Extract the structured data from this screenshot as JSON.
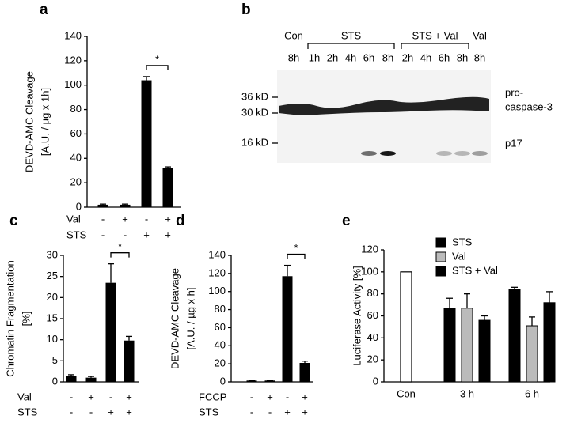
{
  "chart_data": [
    {
      "type": "bar",
      "panel": "a",
      "ylabel": [
        "DEVD-AMC Cleavage",
        "[A.U. / µg x 1h]"
      ],
      "values": [
        2,
        2,
        104,
        32
      ],
      "errors": [
        0.5,
        0.5,
        3,
        1
      ],
      "color": "#000000",
      "ylim": [
        0,
        140
      ],
      "yticks": [
        0,
        20,
        40,
        60,
        80,
        100,
        120,
        140
      ],
      "conditions": [
        {
          "name": "Val",
          "signs": [
            "-",
            "+",
            "-",
            "+"
          ]
        },
        {
          "name": "STS",
          "signs": [
            "-",
            "-",
            "+",
            "+"
          ]
        }
      ],
      "annotation": "*"
    },
    {
      "type": "bar",
      "panel": "c",
      "ylabel": [
        "Chromatin Fragmentation",
        "[%]"
      ],
      "values": [
        1.5,
        1.0,
        23.5,
        9.8
      ],
      "errors": [
        0.2,
        0.3,
        4.5,
        1.0
      ],
      "color": "#000000",
      "ylim": [
        0,
        30
      ],
      "yticks": [
        0,
        5,
        10,
        15,
        20,
        25,
        30
      ],
      "conditions": [
        {
          "name": "Val",
          "signs": [
            "-",
            "+",
            "-",
            "+"
          ]
        },
        {
          "name": "STS",
          "signs": [
            "-",
            "-",
            "+",
            "+"
          ]
        }
      ],
      "annotation": "*"
    },
    {
      "type": "bar",
      "panel": "d",
      "ylabel": [
        "DEVD-AMC Cleavage",
        "[A.U. / µg x h]"
      ],
      "values": [
        1.5,
        1.5,
        117,
        21
      ],
      "errors": [
        0.3,
        0.3,
        12,
        2
      ],
      "color": "#000000",
      "ylim": [
        0,
        140
      ],
      "yticks": [
        0,
        20,
        40,
        60,
        80,
        100,
        120,
        140
      ],
      "conditions": [
        {
          "name": "FCCP",
          "signs": [
            "-",
            "+",
            "-",
            "+"
          ]
        },
        {
          "name": "STS",
          "signs": [
            "-",
            "-",
            "+",
            "+"
          ]
        }
      ],
      "annotation": "*"
    },
    {
      "type": "grouped_bar",
      "panel": "e",
      "ylabel": [
        "Luciferase Activity [%]"
      ],
      "categories": [
        "Con",
        "3 h",
        "6 h"
      ],
      "control": {
        "value": 100,
        "color": "#ffffff"
      },
      "series": [
        {
          "name": "STS",
          "color": "#000000",
          "values": [
            null,
            67,
            84
          ],
          "errors": [
            null,
            9,
            2
          ]
        },
        {
          "name": "Val",
          "color": "#bbbbbb",
          "values": [
            null,
            67,
            51
          ],
          "errors": [
            null,
            13,
            8
          ]
        },
        {
          "name": "STS + Val",
          "color": "#000000",
          "values": [
            null,
            56,
            72
          ],
          "errors": [
            null,
            4,
            10
          ]
        }
      ],
      "ylim": [
        0,
        120
      ],
      "yticks": [
        0,
        20,
        40,
        60,
        80,
        100,
        120
      ]
    }
  ],
  "blot": {
    "panel": "b",
    "groups": [
      "Con",
      "STS",
      "STS + Val",
      "Val"
    ],
    "lanes": [
      "8h",
      "1h",
      "2h",
      "4h",
      "6h",
      "8h",
      "2h",
      "4h",
      "6h",
      "8h",
      "8h"
    ],
    "markers": [
      "36 kD",
      "30 kD",
      "16 kD"
    ],
    "protein_labels": [
      "pro-",
      "caspase-3",
      "p17"
    ]
  }
}
